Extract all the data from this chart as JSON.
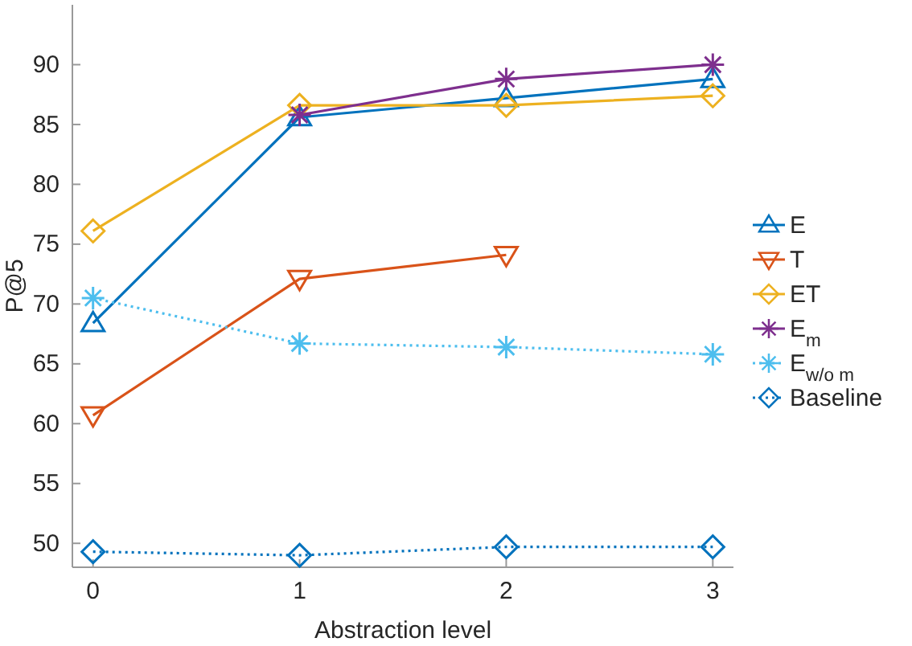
{
  "chart_data": {
    "type": "line",
    "xlabel": "Abstraction level",
    "ylabel": "P@5",
    "x": [
      0,
      1,
      2,
      3
    ],
    "xlim": [
      -0.1,
      3.1
    ],
    "ylim": [
      48,
      95
    ],
    "xticks": [
      0,
      1,
      2,
      3
    ],
    "yticks": [
      50,
      55,
      60,
      65,
      70,
      75,
      80,
      85,
      90
    ],
    "grid": false,
    "legend": "right",
    "series": [
      {
        "name": "E",
        "color": "#0072bd",
        "marker": "triangle",
        "line_style": "solid",
        "values": [
          68.4,
          85.6,
          87.2,
          88.8
        ]
      },
      {
        "name": "T",
        "color": "#d95319",
        "marker": "triangle-down",
        "line_style": "solid",
        "values": [
          60.7,
          72.1,
          74.1,
          null
        ]
      },
      {
        "name": "ET",
        "color": "#edb120",
        "marker": "diamond",
        "line_style": "solid",
        "values": [
          76.1,
          86.6,
          86.6,
          87.4
        ]
      },
      {
        "name": "E$_{m}$",
        "color": "#7e2f8e",
        "marker": "cross",
        "line_style": "solid",
        "values": [
          null,
          85.8,
          88.8,
          90.0
        ]
      },
      {
        "name": "E$_{w/o m}$",
        "color": "#4dbeee",
        "marker": "cross",
        "line_style": "dotted",
        "values": [
          70.5,
          66.7,
          66.4,
          65.8
        ]
      },
      {
        "name": "Baseline",
        "color": "#0072bd",
        "marker": "diamond",
        "line_style": "dotted",
        "values": [
          49.3,
          49.0,
          49.7,
          49.7
        ]
      }
    ]
  }
}
